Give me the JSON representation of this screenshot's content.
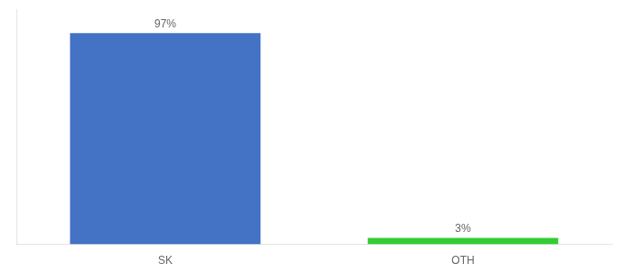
{
  "chart_data": {
    "type": "bar",
    "categories": [
      "SK",
      "OTH"
    ],
    "values": [
      97,
      3
    ],
    "value_labels": [
      "97%",
      "3%"
    ],
    "data_labels": true,
    "colors": [
      "#4472c4",
      "#33cc33"
    ],
    "ylim": [
      0,
      108
    ],
    "grid": false,
    "tick_labels": "x"
  }
}
